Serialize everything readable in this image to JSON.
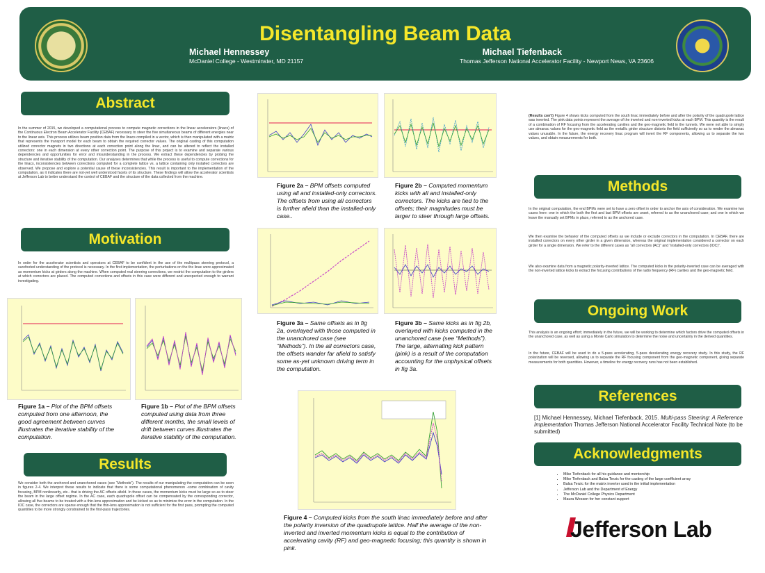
{
  "header": {
    "title": "Disentangling Beam Data",
    "author1": {
      "name": "Michael Hennessey",
      "affiliation": "McDaniel College - Westminster, MD 21157"
    },
    "author2": {
      "name": "Michael Tiefenback",
      "affiliation": "Thomas Jefferson National Accelerator Facility - Newport News, VA 23606"
    },
    "logo_left": "mcdaniel-college-seal",
    "logo_right": "department-of-energy-seal"
  },
  "colors": {
    "banner": "#1f5e46",
    "heading_text": "#f5e72a",
    "plot_bg": "#fdfcc8",
    "pink_line": "#f08c8c"
  },
  "abstract": {
    "heading": "Abstract",
    "text": "In the summer of 2015, we developed a computational process to compute magnetic corrections in the linear accelerators (linacs) of the Continuous Electron Beam Accelerator Facility (CEBAF) necessary to steer the five simultaneous beams of different energies near to the linear axis. This process utilizes beam position data from the linacs compiled in a vector, which is then manipulated with a matrix that represents the transport model for each beam to obtain the required corrector values. The original casting of this computation utilized corrector magnets in two directions at each correction point along the linac, and can be altered to reflect the installed correctors: one in each dimension at every other correction point. The purpose of this project is to examine and separate various dependencies and opportunities for error and misunderstanding in the process. We extract these dependencies by probing the structure and iterative stability of the computation. Our analyses determines that while the process is useful to compute corrections for the linacs, inconsistencies between corrections computed for a complete lattice vs. a lattice containing only installed correctors are observed. We propose and explore a potential cause of these inconsistencies. This result is important to the implementation of the computation, as it indicates there are not-yet well understood facets of its structure. These findings will allow the accelerator scientists at Jefferson Lab to better understand the control of CEBAF and the structure of the data collected from the machine."
  },
  "motivation": {
    "heading": "Motivation",
    "text": "In order for the accelerator scientists and operators at CEBAF to be confident in the use of the multipass steering protocol, a surefooted understanding of the protocol is necessary. In the first implementation, the perturbations on the the linac were approximated as momentum kicks at girders along the machine. When computed real steering corrections, we restrict the computation to the girders at which correctors are placed. The computed corrections and offsets in this case were different and unexpected enough to warrant investigating."
  },
  "results": {
    "heading": "Results",
    "text": "We consider both the anchored and unanchored cases (see “Methods”). The results of our manipulating the computation can be seen in figures 2-4. We interpret these results to indicate that there is some computational phenomenon -some combination of cavity focusing, BPM nonlinearity, etc.- that is driving the AC offsets afield. In these cases, the momentum kicks must be large so as to steer the beam in the large offset regime. In the AC case, each quadrupole offset can be compensated by the corresponding corrector, allowing all five beams to be treated with a thin-lens approximation and be kicked so as to minimize the error in the computation. In the IOC case, the correctors are sparse enough that the thin-lens approximation is not sufficient for the first pass, prompting the computed quantities to be more strongly constrained to the first-pass trajectories."
  },
  "results_cont": {
    "lead": "(Results con't)",
    "text": "Figure 4 shows kicks computed from the south linac immediately before and after the polarity of the quadrupole lattice was inverted. The pink data points represent the average of the inverted and non-inverted kicks at each BPM. This quantity is the result of a combination of RF focusing from the accelerating cavities and the geo-magnetic field in the tunnels. We were not able to simply use almanac values for the geo-magnetic field as the metallic girder structure distorts the field sufficiently so as to render the almanac values unusable. In the future, the energy recovery linac program will invert the RF components, allowing us to separate the two values, and obtain measurements for both."
  },
  "methods": {
    "heading": "Methods",
    "p1": "In the original computation, the end BPMs were set to have a zero offset in order to anchor the axis of consideration. We examine two cases here: one in which the both the first and last BPM offsets are unset, referred to as the unanchored case; and one in which we leave the manually set BPMs in place, referred to as the anchored case.",
    "p2": "We then examine the behavior of the computed offsets as we include or exclude correctors in the computation. In CEBAF, there are installed correctors on every other girder in a given dimension, whereas the original implementation considered a corrector on each girder for a single dimension. We refer to the different cases as “all correctors (AC)” and “installed-only correctors (IOC)”.",
    "p3": "We also examine data from a magnetic polarity-inverted lattice. The computed kicks in the polarity-inverted case can be averaged with the non-inverted lattice kicks to extract the focusing contributions of the radio frequency (RF) cavities and the geo-magnetic field."
  },
  "ongoing": {
    "heading": "Ongoing Work",
    "p1": "This analysis is an ongoing effort; immediately in the future, we will be working to determine which factors drive the computed offsets in the unanchored case, as well as using a Monte Carlo simulation to determine the noise and uncertainty in the derived quantities.",
    "p2": "In the future, CEBAF will be used to do a 5-pass accelerating, 5-pass decelerating energy recovery study. In this study, the RF polarization will be reversed, allowing us to separate the RF focusing component from the geo-magnetic component, giving separate measurements for both quantities. However, a timeline for energy recovery runs has not been established."
  },
  "references": {
    "heading": "References",
    "pre": "[1] Michael Hennessey, Michael Tiefenback, 2015. ",
    "title": "Multi-pass Steering: A Reference Implementation",
    "post": " Thomas Jefferson National Accelerator Facility Technical Note (to be submitted)"
  },
  "acknowledgments": {
    "heading": "Acknowledgments",
    "items": [
      "Mike Tiefenback for all his guidance and mentorship",
      "Mike Tiefenback and Balsa Terzic for the casting of the large coefficient array",
      "Balsa Terzic for the matrix inverter used in the initial implementation",
      "Jefferson Lab and the Department of Energy",
      "The McDaniel College Physics Department",
      "Maura Wessen for her constant support"
    ],
    "logo_text": "Jefferson Lab"
  },
  "figures": {
    "fig1a": {
      "label": "Figure 1a –",
      "caption": " Plot of the BPM offsets computed from one afternoon, the good agreement between curves illustrates the iterative stability of the computation."
    },
    "fig1b": {
      "label": "Figure 1b –",
      "caption": " Plot of the BPM offsets computed using data from three different months, the small levels of drift between curves illustrates the iterative stability of the computation."
    },
    "fig2a": {
      "label": "Figure 2a –",
      "caption": " BPM offsets computed using all and installed-only correctors. The offsets from using all correctors is further afield than the installed-only case.."
    },
    "fig2b": {
      "label": "Figure 2b –",
      "caption": " Computed momentum kicks with all and installed-only correctors. The kicks are tied to the offsets; their magnitudes must be larger to steer through large offsets."
    },
    "fig3a": {
      "label": "Figure 3a –",
      "caption": " Same offsets as in fig 2a, overlayed with those computed in the unanchored case (see “Methods”). In the all correctors case, the offsets wander far afield to satisfy some as-yet unknown driving term in the computation."
    },
    "fig3b": {
      "label": "Figure 3b –",
      "caption": " Same kicks as in fig 2b, overlayed with kicks computed in the unanchored case (see “Methods”). The large, alternating kick pattern (pink) is a result of the computation accounting for the unphysical offsets in fig 3a."
    },
    "fig4": {
      "label": "Figure 4 –",
      "caption": " Computed kicks from the south linac immediately before and after the polarity inversion of the quadrupole lattice. Half the average of the non-inverted and inverted momentum kicks is equal to the contribution of accelerating cavity (RF) and geo-magnetic focusing; this quantity is shown in pink."
    }
  }
}
